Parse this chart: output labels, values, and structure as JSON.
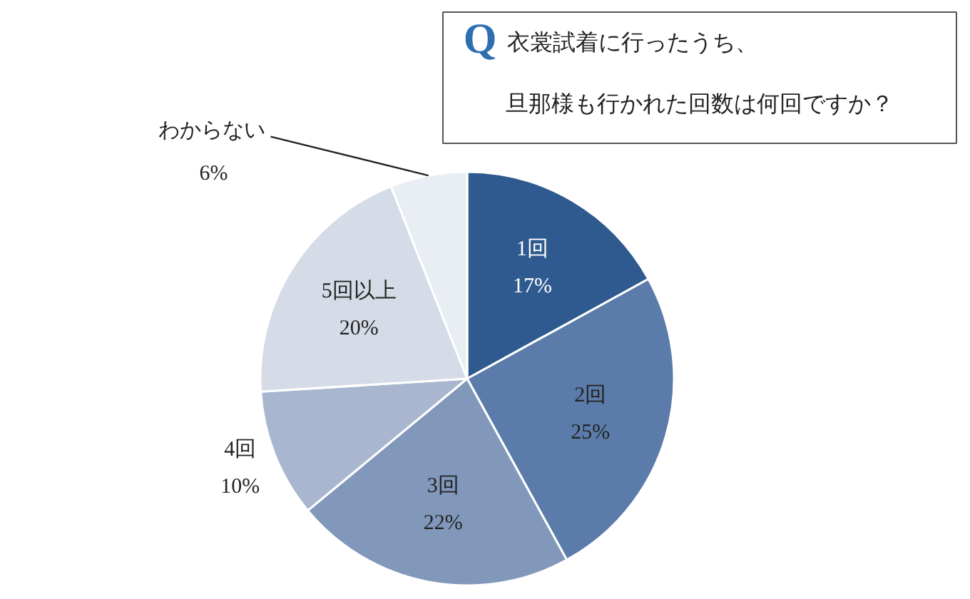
{
  "chart_data": {
    "type": "pie",
    "title": "Q衣裳試着に行ったうち、旦那様も行かれた回数は何回ですか？",
    "categories": [
      "1回",
      "2回",
      "3回",
      "4回",
      "5回以上",
      "わからない"
    ],
    "values": [
      17,
      25,
      22,
      10,
      20,
      6
    ],
    "value_labels": [
      "17%",
      "25%",
      "22%",
      "10%",
      "20%",
      "6%"
    ],
    "colors": [
      "#2f5a8f",
      "#5b7caa",
      "#8198bb",
      "#a8b7cf",
      "#d5dce7",
      "#e9edf4"
    ]
  }
}
